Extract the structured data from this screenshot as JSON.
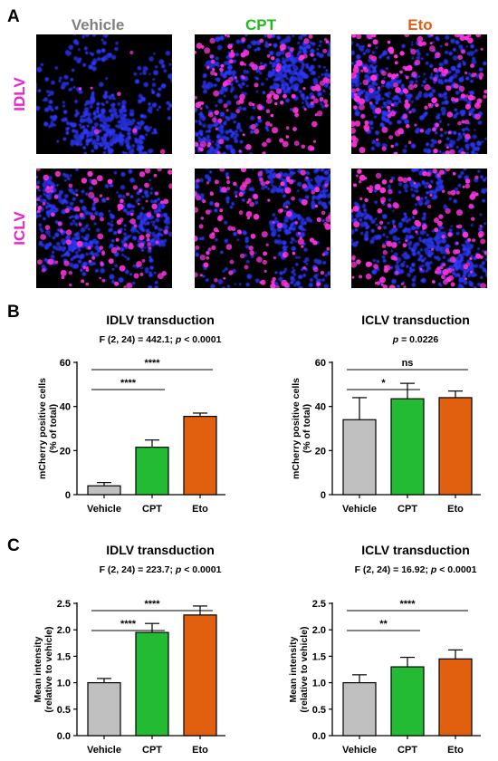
{
  "panel_letters": [
    "A",
    "B",
    "C"
  ],
  "microscopy": {
    "columns": [
      {
        "label": "Vehicle",
        "color": "#808080"
      },
      {
        "label": "CPT",
        "color": "#22bb22"
      },
      {
        "label": "Eto",
        "color": "#e06010"
      }
    ],
    "rows": [
      {
        "label": "IDLV",
        "color": "#ee22cc"
      },
      {
        "label": "ICLV",
        "color": "#ee22cc"
      }
    ],
    "nuclei_color": "#2233ff",
    "mcherry_color": "#ff33dd"
  },
  "chart_data": [
    {
      "type": "bar",
      "title": "IDLV transduction",
      "subtitle_parts": [
        "F (2, 24) = 442.1; ",
        "p",
        " < 0.0001"
      ],
      "ylabel": [
        "mCherry positive cells",
        "(% of total)"
      ],
      "categories": [
        "Vehicle",
        "CPT",
        "Eto"
      ],
      "values": [
        4,
        21.5,
        35.5
      ],
      "errors": [
        1.5,
        3.3,
        1.5
      ],
      "colors": [
        "#c0c0c0",
        "#22bb33",
        "#e06010"
      ],
      "ylim": [
        0,
        60
      ],
      "yticks": [
        0,
        20,
        40,
        60
      ],
      "comparisons": [
        {
          "from": 0,
          "to": 1,
          "label": "****"
        },
        {
          "from": 0,
          "to": 2,
          "label": "****"
        }
      ]
    },
    {
      "type": "bar",
      "title": "ICLV transduction",
      "subtitle_parts": [
        "",
        "p",
        " = 0.0226"
      ],
      "ylabel": [
        "mCherry positive cells",
        "(% of total)"
      ],
      "categories": [
        "Vehicle",
        "CPT",
        "Eto"
      ],
      "values": [
        34,
        43.5,
        44
      ],
      "errors": [
        10,
        7,
        3
      ],
      "colors": [
        "#c0c0c0",
        "#22bb33",
        "#e06010"
      ],
      "ylim": [
        0,
        60
      ],
      "yticks": [
        0,
        20,
        40,
        60
      ],
      "comparisons": [
        {
          "from": 0,
          "to": 1,
          "label": "*"
        },
        {
          "from": 0,
          "to": 2,
          "label": "ns"
        }
      ]
    },
    {
      "type": "bar",
      "title": "IDLV transduction",
      "subtitle_parts": [
        "F (2, 24) = 223.7; ",
        "p",
        " < 0.0001"
      ],
      "ylabel": [
        "Mean intensity",
        "(relative to vehicle)"
      ],
      "categories": [
        "Vehicle",
        "CPT",
        "Eto"
      ],
      "values": [
        1.0,
        1.95,
        2.28
      ],
      "errors": [
        0.08,
        0.17,
        0.17
      ],
      "colors": [
        "#c0c0c0",
        "#22bb33",
        "#e06010"
      ],
      "ylim": [
        0,
        2.5
      ],
      "yticks": [
        0.0,
        0.5,
        1.0,
        1.5,
        2.0,
        2.5
      ],
      "comparisons": [
        {
          "from": 0,
          "to": 1,
          "label": "****"
        },
        {
          "from": 0,
          "to": 2,
          "label": "****"
        }
      ]
    },
    {
      "type": "bar",
      "title": "ICLV transduction",
      "subtitle_parts": [
        "F (2, 24) = 16.92; ",
        "p",
        " < 0.0001"
      ],
      "ylabel": [
        "Mean intensity",
        "(relative to vehicle)"
      ],
      "categories": [
        "Vehicle",
        "CPT",
        "Eto"
      ],
      "values": [
        1.0,
        1.3,
        1.45
      ],
      "errors": [
        0.15,
        0.18,
        0.17
      ],
      "colors": [
        "#c0c0c0",
        "#22bb33",
        "#e06010"
      ],
      "ylim": [
        0,
        2.5
      ],
      "yticks": [
        0.0,
        0.5,
        1.0,
        1.5,
        2.0,
        2.5
      ],
      "comparisons": [
        {
          "from": 0,
          "to": 1,
          "label": "**"
        },
        {
          "from": 0,
          "to": 2,
          "label": "****"
        }
      ]
    }
  ]
}
